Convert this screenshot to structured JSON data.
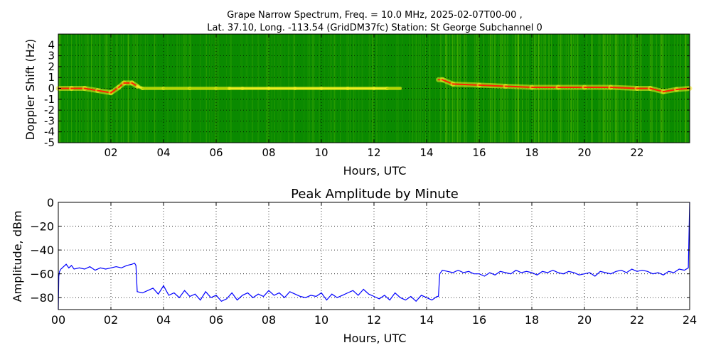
{
  "figure": {
    "title_line1": "Grape Narrow Spectrum, Freq. = 10.0 MHz, 2025-02-07T00-00 ,",
    "title_line2": "Lat.  37.10, Long. -113.54 (GridDM37fc) Station: St George Subchannel 0"
  },
  "chart_data": [
    {
      "type": "heatmap",
      "title": "",
      "xlabel": "Hours, UTC",
      "ylabel": "Doppler Shift (Hz)",
      "xlim": [
        0,
        24
      ],
      "ylim": [
        -5,
        5
      ],
      "x_ticks": [
        {
          "v": 2,
          "label": "02"
        },
        {
          "v": 4,
          "label": "04"
        },
        {
          "v": 6,
          "label": "06"
        },
        {
          "v": 8,
          "label": "08"
        },
        {
          "v": 10,
          "label": "10"
        },
        {
          "v": 12,
          "label": "12"
        },
        {
          "v": 14,
          "label": "14"
        },
        {
          "v": 16,
          "label": "16"
        },
        {
          "v": 18,
          "label": "18"
        },
        {
          "v": 20,
          "label": "20"
        },
        {
          "v": 22,
          "label": "22"
        }
      ],
      "y_ticks": [
        {
          "v": 4,
          "label": "4"
        },
        {
          "v": 3,
          "label": "3"
        },
        {
          "v": 2,
          "label": "2"
        },
        {
          "v": 1,
          "label": "1"
        },
        {
          "v": 0,
          "label": "0"
        },
        {
          "v": -1,
          "label": "-1"
        },
        {
          "v": -2,
          "label": "-2"
        },
        {
          "v": -3,
          "label": "-3"
        },
        {
          "v": -4,
          "label": "-4"
        },
        {
          "v": -5,
          "label": "-5"
        }
      ],
      "grid": true,
      "background_color": "#0a8a00",
      "carrier_colors": {
        "weak": "#b8d800",
        "mid": "#f0f020",
        "strong": "#ff2000"
      },
      "carrier_trace": {
        "x": [
          0,
          0.5,
          1,
          1.5,
          2,
          2.3,
          2.5,
          2.8,
          3.0,
          3.2,
          4,
          5,
          6,
          6.5,
          7,
          8,
          9,
          10,
          11,
          12,
          12.5,
          13.0,
          14.45,
          14.6,
          15,
          16,
          17,
          18,
          19,
          20,
          21,
          22,
          22.5,
          23,
          23.5,
          24
        ],
        "y": [
          0.0,
          0.0,
          0.0,
          -0.2,
          -0.4,
          0.1,
          0.5,
          0.5,
          0.2,
          0.0,
          0.0,
          0.0,
          0.0,
          0.0,
          0.0,
          0.0,
          0.0,
          0.0,
          0.0,
          0.0,
          0.0,
          0.0,
          0.8,
          0.8,
          0.4,
          0.3,
          0.2,
          0.1,
          0.1,
          0.1,
          0.1,
          0.0,
          0.0,
          -0.3,
          -0.1,
          0.0
        ],
        "intensity": [
          3,
          3,
          3,
          3,
          3,
          3,
          3,
          3,
          2,
          1,
          1,
          1,
          1,
          2,
          2,
          2,
          2,
          2,
          2,
          2,
          1,
          0,
          3,
          3,
          3,
          3,
          3,
          3,
          3,
          3,
          3,
          3,
          3,
          3,
          3,
          3
        ]
      }
    },
    {
      "type": "line",
      "title": "Peak Amplitude by Minute",
      "xlabel": "Hours, UTC",
      "ylabel": "Amplitude, dBm",
      "xlim": [
        0,
        24
      ],
      "ylim": [
        -90,
        0
      ],
      "x_ticks": [
        {
          "v": 0,
          "label": "00"
        },
        {
          "v": 2,
          "label": "02"
        },
        {
          "v": 4,
          "label": "04"
        },
        {
          "v": 6,
          "label": "06"
        },
        {
          "v": 8,
          "label": "08"
        },
        {
          "v": 10,
          "label": "10"
        },
        {
          "v": 12,
          "label": "12"
        },
        {
          "v": 14,
          "label": "14"
        },
        {
          "v": 16,
          "label": "16"
        },
        {
          "v": 18,
          "label": "18"
        },
        {
          "v": 20,
          "label": "20"
        },
        {
          "v": 22,
          "label": "22"
        },
        {
          "v": 24,
          "label": "24"
        }
      ],
      "y_ticks": [
        {
          "v": 0,
          "label": "0"
        },
        {
          "v": -20,
          "label": "−20"
        },
        {
          "v": -40,
          "label": "−40"
        },
        {
          "v": -60,
          "label": "−60"
        },
        {
          "v": -80,
          "label": "−80"
        }
      ],
      "grid": true,
      "line_color": "#0000ff",
      "series": [
        {
          "x": [
            0,
            0.02,
            0.05,
            0.1,
            0.2,
            0.3,
            0.4,
            0.5,
            0.6,
            0.8,
            1.0,
            1.2,
            1.4,
            1.6,
            1.8,
            2.0,
            2.2,
            2.4,
            2.6,
            2.8,
            2.9,
            2.95,
            3.0,
            3.2,
            3.4,
            3.6,
            3.8,
            4.0,
            4.2,
            4.4,
            4.6,
            4.8,
            5.0,
            5.2,
            5.4,
            5.6,
            5.8,
            6.0,
            6.2,
            6.4,
            6.6,
            6.8,
            7.0,
            7.2,
            7.4,
            7.6,
            7.8,
            8.0,
            8.2,
            8.4,
            8.6,
            8.8,
            9.0,
            9.2,
            9.4,
            9.6,
            9.8,
            10.0,
            10.2,
            10.4,
            10.6,
            10.8,
            11.0,
            11.2,
            11.4,
            11.6,
            11.8,
            12.0,
            12.2,
            12.4,
            12.6,
            12.8,
            13.0,
            13.2,
            13.4,
            13.6,
            13.8,
            14.0,
            14.2,
            14.4,
            14.45,
            14.5,
            14.6,
            14.8,
            15.0,
            15.2,
            15.4,
            15.6,
            15.8,
            16.0,
            16.2,
            16.4,
            16.6,
            16.8,
            17.0,
            17.2,
            17.4,
            17.6,
            17.8,
            18.0,
            18.2,
            18.4,
            18.6,
            18.8,
            19.0,
            19.2,
            19.4,
            19.6,
            19.8,
            20.0,
            20.2,
            20.4,
            20.6,
            20.8,
            21.0,
            21.2,
            21.4,
            21.6,
            21.8,
            22.0,
            22.2,
            22.4,
            22.6,
            22.8,
            23.0,
            23.2,
            23.4,
            23.6,
            23.8,
            23.95,
            24.0
          ],
          "y": [
            -90,
            -62,
            -58,
            -56,
            -54,
            -52,
            -55,
            -53,
            -56,
            -55,
            -56,
            -54,
            -57,
            -55,
            -56,
            -55,
            -54,
            -55,
            -53,
            -52,
            -51,
            -53,
            -75,
            -76,
            -74,
            -72,
            -77,
            -70,
            -78,
            -76,
            -80,
            -74,
            -79,
            -77,
            -82,
            -75,
            -80,
            -78,
            -83,
            -81,
            -76,
            -82,
            -78,
            -76,
            -80,
            -77,
            -79,
            -74,
            -78,
            -76,
            -80,
            -75,
            -77,
            -79,
            -80,
            -78,
            -79,
            -76,
            -82,
            -77,
            -80,
            -78,
            -76,
            -74,
            -78,
            -73,
            -77,
            -79,
            -81,
            -78,
            -82,
            -76,
            -80,
            -82,
            -79,
            -83,
            -78,
            -80,
            -82,
            -79,
            -79,
            -60,
            -57,
            -58,
            -59,
            -57,
            -59,
            -58,
            -60,
            -60,
            -62,
            -59,
            -61,
            -58,
            -59,
            -60,
            -57,
            -59,
            -58,
            -59,
            -61,
            -58,
            -59,
            -57,
            -59,
            -60,
            -58,
            -59,
            -61,
            -60,
            -59,
            -62,
            -58,
            -59,
            -60,
            -58,
            -57,
            -59,
            -56,
            -58,
            -57,
            -58,
            -60,
            -59,
            -61,
            -58,
            -59,
            -56,
            -57,
            -55,
            0
          ]
        }
      ]
    }
  ]
}
